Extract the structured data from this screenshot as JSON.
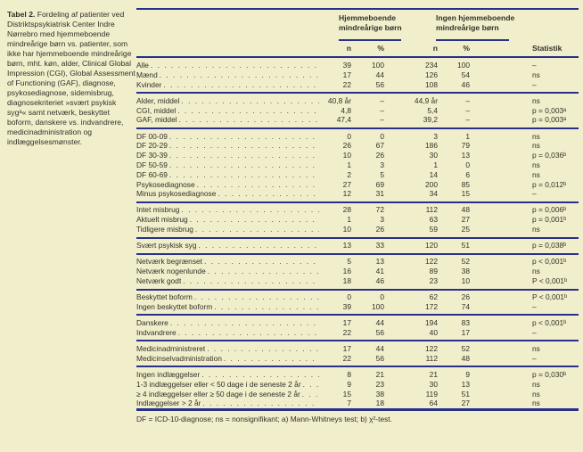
{
  "caption": {
    "label": "Tabel 2.",
    "text": " Fordeling af patienter ved Distriktspsykiatrisk Center Indre Nørrebro med hjemmeboende mindreårige børn vs. patienter, som ikke har hjemmeboende mindreårige børn, mht. køn, alder, Clinical Global Impression (CGI), Global Assessment of Functioning (GAF), diagnose, psykosediagnose, sidemisbrug, diagnosekriteriet »svært psykisk sygᵃ« samt netværk, beskyttet boform, danskere vs. indvandrere, medicinadministration og indlæggelsesmønster."
  },
  "table": {
    "col_groups": [
      {
        "title": "Hjemmeboende mindreårige børn"
      },
      {
        "title": "Ingen hjemmeboende mindreårige børn"
      }
    ],
    "subheaders": {
      "n": "n",
      "pct": "%",
      "stat": "Statistik"
    },
    "groups": [
      {
        "rows": [
          {
            "label": "Alle",
            "n1": "39",
            "pct1": "100",
            "n2": "234",
            "pct2": "100",
            "stat": "–"
          },
          {
            "label": "Mænd",
            "n1": "17",
            "pct1": "44",
            "n2": "126",
            "pct2": "54",
            "stat": "ns"
          },
          {
            "label": "Kvinder",
            "n1": "22",
            "pct1": "56",
            "n2": "108",
            "pct2": "46",
            "stat": "–"
          }
        ]
      },
      {
        "rows": [
          {
            "label": "Alder, middel",
            "n1": "40,8 år",
            "pct1": "–",
            "n2": "44,9 år",
            "pct2": "–",
            "stat": "ns"
          },
          {
            "label": "CGI, middel",
            "n1": "4,8",
            "pct1": "–",
            "n2": "5,4",
            "pct2": "–",
            "stat": "p = 0,003ᵃ"
          },
          {
            "label": "GAF, middel",
            "n1": "47,4",
            "pct1": "–",
            "n2": "39,2",
            "pct2": "–",
            "stat": "p = 0,003ᵃ"
          }
        ]
      },
      {
        "rows": [
          {
            "label": "DF 00-09",
            "n1": "0",
            "pct1": "0",
            "n2": "3",
            "pct2": "1",
            "stat": "ns"
          },
          {
            "label": "DF 20-29",
            "n1": "26",
            "pct1": "67",
            "n2": "186",
            "pct2": "79",
            "stat": "ns"
          },
          {
            "label": "DF 30-39",
            "n1": "10",
            "pct1": "26",
            "n2": "30",
            "pct2": "13",
            "stat": "p = 0,036ᵇ"
          },
          {
            "label": "DF 50-59",
            "n1": "1",
            "pct1": "3",
            "n2": "1",
            "pct2": "0",
            "stat": "ns"
          },
          {
            "label": "DF 60-69",
            "n1": "2",
            "pct1": "5",
            "n2": "14",
            "pct2": "6",
            "stat": "ns"
          },
          {
            "label": "Psykosediagnose",
            "n1": "27",
            "pct1": "69",
            "n2": "200",
            "pct2": "85",
            "stat": "p = 0,012ᵇ"
          },
          {
            "label": "Minus psykosediagnose",
            "n1": "12",
            "pct1": "31",
            "n2": "34",
            "pct2": "15",
            "stat": "–"
          }
        ]
      },
      {
        "rows": [
          {
            "label": "Intet misbrug",
            "n1": "28",
            "pct1": "72",
            "n2": "112",
            "pct2": "48",
            "stat": "p = 0,006ᵇ"
          },
          {
            "label": "Aktuelt misbrug",
            "n1": "1",
            "pct1": "3",
            "n2": "63",
            "pct2": "27",
            "stat": "p = 0,001ᵇ"
          },
          {
            "label": "Tidligere misbrug",
            "n1": "10",
            "pct1": "26",
            "n2": "59",
            "pct2": "25",
            "stat": "ns"
          }
        ]
      },
      {
        "rows": [
          {
            "label": "Svært psykisk syg",
            "n1": "13",
            "pct1": "33",
            "n2": "120",
            "pct2": "51",
            "stat": "p = 0,038ᵇ"
          }
        ]
      },
      {
        "rows": [
          {
            "label": "Netværk begrænset",
            "n1": "5",
            "pct1": "13",
            "n2": "122",
            "pct2": "52",
            "stat": "p < 0,001ᵇ"
          },
          {
            "label": "Netværk nogenlunde",
            "n1": "16",
            "pct1": "41",
            "n2": "89",
            "pct2": "38",
            "stat": "ns"
          },
          {
            "label": "Netværk godt",
            "n1": "18",
            "pct1": "46",
            "n2": "23",
            "pct2": "10",
            "stat": "P < 0,001ᵇ"
          }
        ]
      },
      {
        "rows": [
          {
            "label": "Beskyttet boform",
            "n1": "0",
            "pct1": "0",
            "n2": "62",
            "pct2": "26",
            "stat": "P < 0,001ᵇ"
          },
          {
            "label": "Ingen beskyttet boform",
            "n1": "39",
            "pct1": "100",
            "n2": "172",
            "pct2": "74",
            "stat": "–"
          }
        ]
      },
      {
        "rows": [
          {
            "label": "Danskere",
            "n1": "17",
            "pct1": "44",
            "n2": "194",
            "pct2": "83",
            "stat": "p < 0,001ᵇ"
          },
          {
            "label": "Indvandrere",
            "n1": "22",
            "pct1": "56",
            "n2": "40",
            "pct2": "17",
            "stat": "–"
          }
        ]
      },
      {
        "rows": [
          {
            "label": "Medicinadministreret",
            "n1": "17",
            "pct1": "44",
            "n2": "122",
            "pct2": "52",
            "stat": "ns"
          },
          {
            "label": "Medicinselvadministration",
            "n1": "22",
            "pct1": "56",
            "n2": "112",
            "pct2": "48",
            "stat": "–"
          }
        ]
      },
      {
        "rows": [
          {
            "label": "Ingen indlæggelser",
            "n1": "8",
            "pct1": "21",
            "n2": "21",
            "pct2": "9",
            "stat": "p = 0,030ᵇ"
          },
          {
            "label": "1-3 indlæggelser eller < 50 dage i de seneste 2 år",
            "n1": "9",
            "pct1": "23",
            "n2": "30",
            "pct2": "13",
            "stat": "ns"
          },
          {
            "label": "≥ 4 indlæggelser eller ≥ 50 dage i de seneste 2 år",
            "n1": "15",
            "pct1": "38",
            "n2": "119",
            "pct2": "51",
            "stat": "ns"
          },
          {
            "label": "Indlæggelser > 2 år",
            "n1": "7",
            "pct1": "18",
            "n2": "64",
            "pct2": "27",
            "stat": "ns"
          }
        ]
      }
    ],
    "footnote": "DF = ICD-10-diagnose; ns = nonsignifikant; a) Mann-Whitneys test; b) χ²-test."
  },
  "colors": {
    "background": "#f1eecb",
    "rule": "#27308a",
    "text": "#33312a"
  }
}
